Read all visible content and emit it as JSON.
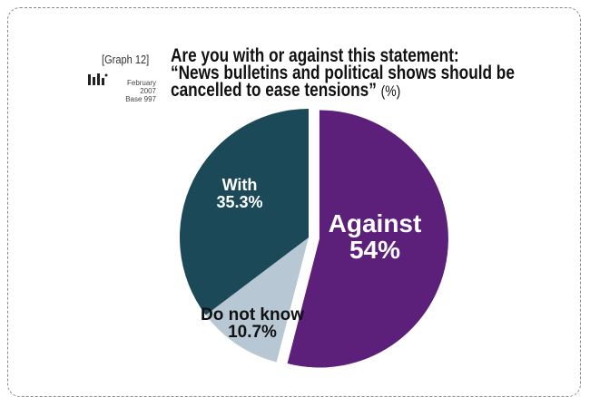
{
  "header": {
    "graph_label": "[Graph 12]",
    "logo_icon": "pollster-logo-icon",
    "date": "February 2007",
    "base": "Base 997",
    "title_line1": "Are you with or against this statement:",
    "title_line2": "“News bulletins and political shows should be",
    "title_line3": "cancelled to ease tensions”",
    "title_unit": "(%)"
  },
  "chart_data": {
    "type": "pie",
    "title": "Are you with or against this statement: “News bulletins and political shows should be cancelled to ease tensions” (%)",
    "unit": "%",
    "slices": [
      {
        "label": "Against",
        "value": 54,
        "value_text": "54%",
        "color": "#5c1f7a",
        "label_color": "#ffffff",
        "exploded": true
      },
      {
        "label": "Do not know",
        "value": 10.7,
        "value_text": "10.7%",
        "color": "#b7c8d4",
        "label_color": "#111111",
        "exploded": false
      },
      {
        "label": "With",
        "value": 35.3,
        "value_text": "35.3%",
        "color": "#1c4958",
        "label_color": "#ffffff",
        "exploded": false
      }
    ]
  }
}
